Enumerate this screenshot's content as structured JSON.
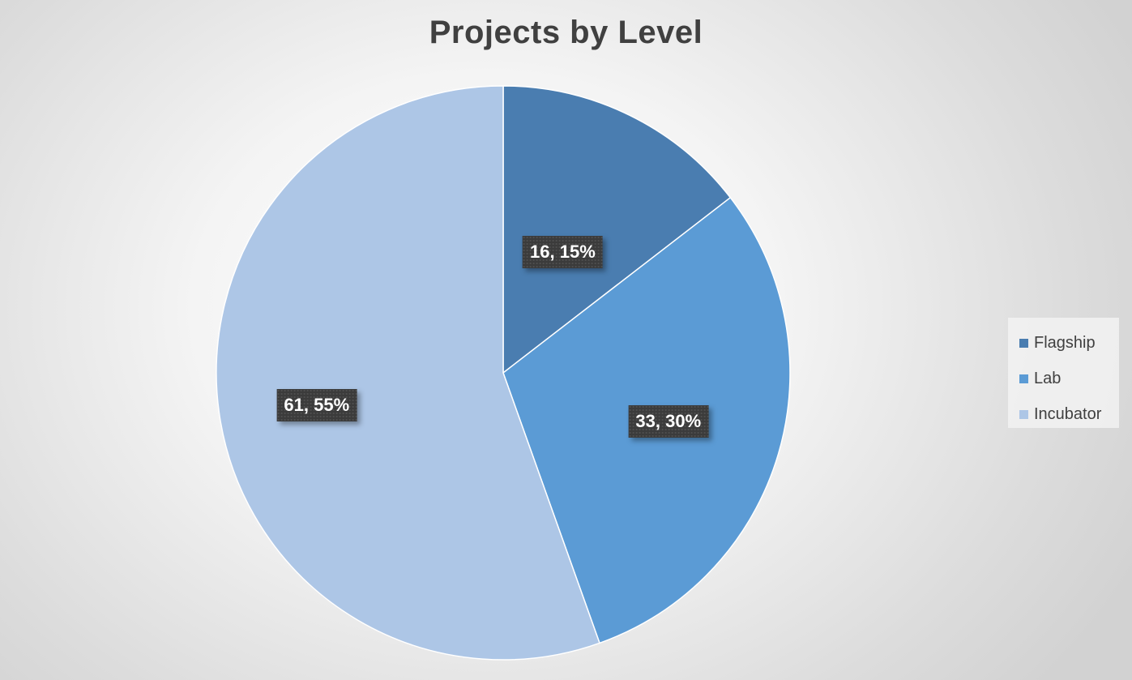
{
  "chart_data": {
    "type": "pie",
    "title": "Projects by Level",
    "categories": [
      "Flagship",
      "Lab",
      "Incubator"
    ],
    "values": [
      16,
      33,
      61
    ],
    "percents": [
      15,
      30,
      55
    ],
    "labels": [
      "16, 15%",
      "33, 30%",
      "61, 55%"
    ],
    "colors": [
      "#4a7db0",
      "#5b9bd5",
      "#adc6e6"
    ],
    "start_angle_deg": 0,
    "direction": "clockwise",
    "legend_position": "right"
  }
}
